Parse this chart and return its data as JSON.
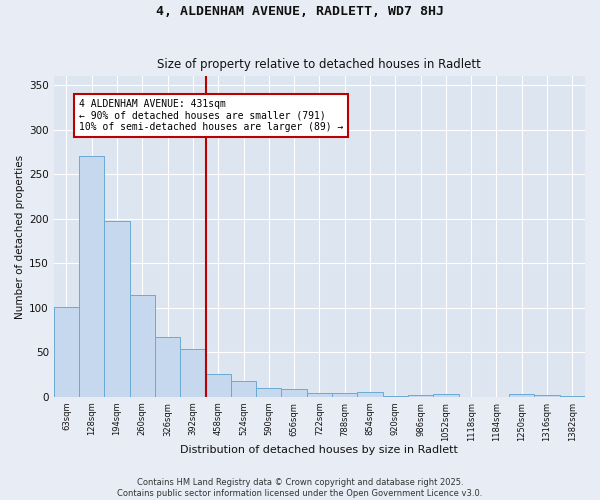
{
  "title1": "4, ALDENHAM AVENUE, RADLETT, WD7 8HJ",
  "title2": "Size of property relative to detached houses in Radlett",
  "xlabel": "Distribution of detached houses by size in Radlett",
  "ylabel": "Number of detached properties",
  "bin_labels": [
    "63sqm",
    "128sqm",
    "194sqm",
    "260sqm",
    "326sqm",
    "392sqm",
    "458sqm",
    "524sqm",
    "590sqm",
    "656sqm",
    "722sqm",
    "788sqm",
    "854sqm",
    "920sqm",
    "986sqm",
    "1052sqm",
    "1118sqm",
    "1184sqm",
    "1250sqm",
    "1316sqm",
    "1382sqm"
  ],
  "bar_values": [
    101,
    271,
    197,
    114,
    67,
    54,
    26,
    18,
    10,
    9,
    4,
    4,
    6,
    1,
    2,
    3,
    0,
    0,
    3,
    2,
    1
  ],
  "bar_color": "#c5d8ee",
  "bar_edge_color": "#6aaad4",
  "vline_x_index": 6.0,
  "vline_color": "#bb0000",
  "annotation_text": "4 ALDENHAM AVENUE: 431sqm\n← 90% of detached houses are smaller (791)\n10% of semi-detached houses are larger (89) →",
  "annotation_box_color": "#ffffff",
  "annotation_box_edge_color": "#bb0000",
  "ylim": [
    0,
    360
  ],
  "yticks": [
    0,
    50,
    100,
    150,
    200,
    250,
    300,
    350
  ],
  "footer_text": "Contains HM Land Registry data © Crown copyright and database right 2025.\nContains public sector information licensed under the Open Government Licence v3.0.",
  "background_color": "#e8edf5",
  "plot_bg_color": "#dde6f0"
}
